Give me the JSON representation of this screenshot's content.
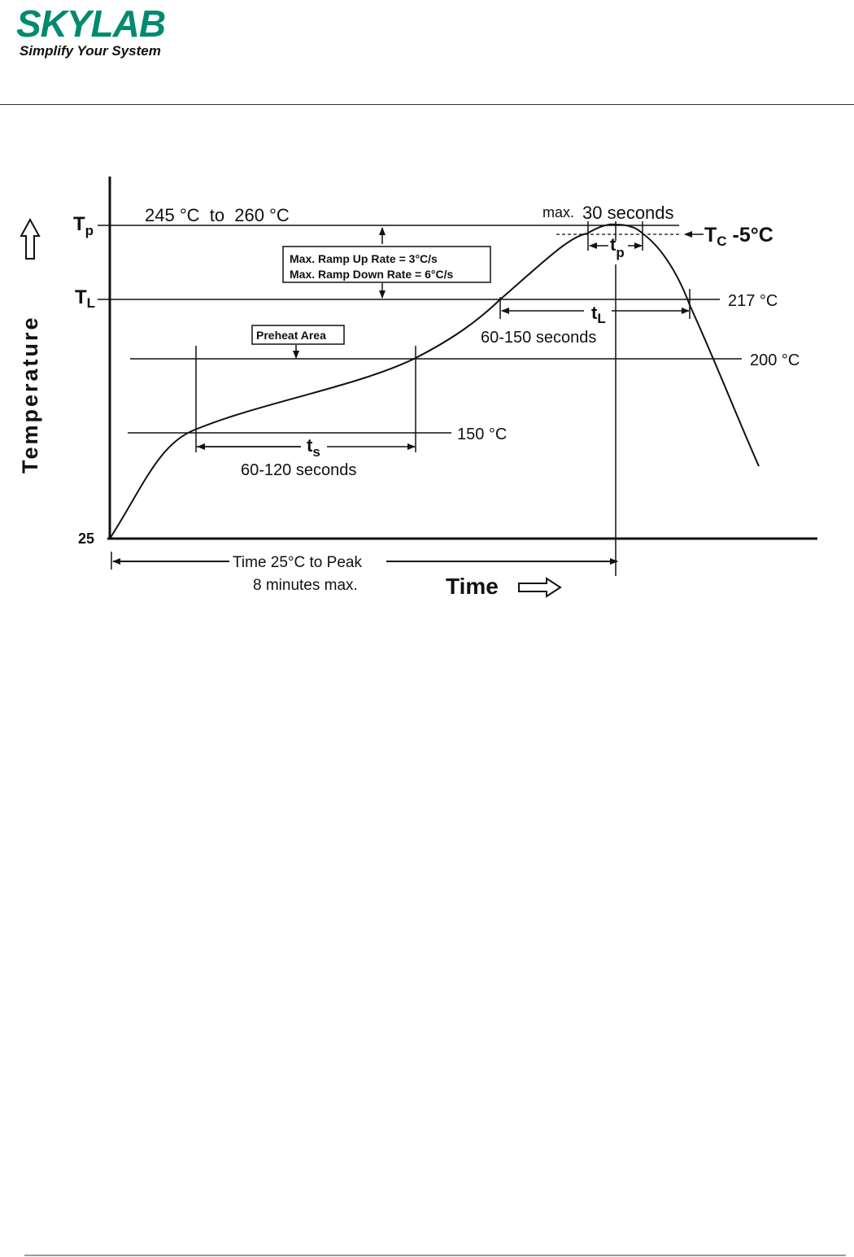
{
  "header": {
    "logo_text": "SKYLAB",
    "tagline": "Simplify Your System",
    "brand_color": "#008a6e"
  },
  "diagram": {
    "y_axis_label": "Temperature",
    "x_axis_label": "Time",
    "tp_label": "T",
    "tp_sub": "p",
    "tl_label": "T",
    "tl_sub": "L",
    "origin_label": "25",
    "peak_range": "245 °C  to  260 °C",
    "max_prefix": "max.",
    "max_time": "30 seconds",
    "tc_label": "T",
    "tc_sub": "C",
    "tc_suffix": " -5°C",
    "tp_interval": "t",
    "tp_interval_sub": "p",
    "liquidus_temp": "217 °C",
    "tl_interval": "t",
    "tl_interval_sub": "L",
    "liquidus_time": "60-150 seconds",
    "preheat_max_temp": "200 °C",
    "preheat_min_temp": "150 °C",
    "ts_interval": "t",
    "ts_interval_sub": "s",
    "preheat_time": "60-120 seconds",
    "preheat_box": "Preheat Area",
    "ramp_up": "Max. Ramp Up Rate = 3°C/s",
    "ramp_down": "Max. Ramp Down Rate = 6°C/s",
    "time_to_peak": "Time 25°C to Peak",
    "time_to_peak_max": "8 minutes max."
  }
}
